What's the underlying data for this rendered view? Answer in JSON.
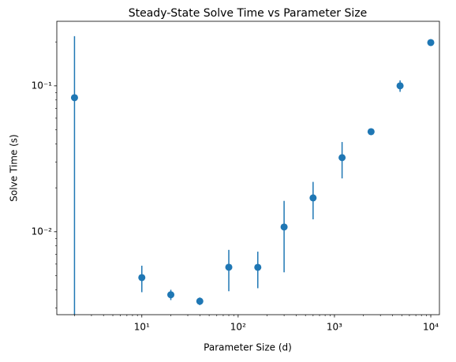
{
  "chart_data": {
    "type": "errorbar",
    "title": "Steady-State Solve Time vs Parameter Size",
    "xlabel": "Parameter Size (d)",
    "ylabel": "Solve Time (s)",
    "x": [
      2,
      10,
      20,
      40,
      80,
      160,
      300,
      600,
      1200,
      2400,
      4800,
      10000
    ],
    "values": [
      0.083,
      0.00485,
      0.0037,
      0.00334,
      0.00571,
      0.0057,
      0.01077,
      0.01706,
      0.0322,
      0.0485,
      0.1,
      0.198
    ],
    "errors": [
      0.136,
      0.001,
      0.0003,
      0.0002,
      0.0018,
      0.0016,
      0.0055,
      0.0049,
      0.009,
      0.0005,
      0.009,
      0.001
    ],
    "color": "#1f77b4",
    "xscale": "log",
    "yscale": "log",
    "xlim": [
      1.31,
      12300
    ],
    "ylim": [
      0.0027,
      0.277
    ],
    "xticks": [
      {
        "value": 10,
        "label": "10¹"
      },
      {
        "value": 100,
        "label": "10²"
      },
      {
        "value": 1000,
        "label": "10³"
      },
      {
        "value": 10000,
        "label": "10⁴"
      }
    ],
    "yticks": [
      {
        "value": 0.01,
        "label": "10⁻²"
      },
      {
        "value": 0.1,
        "label": "10⁻¹"
      }
    ],
    "x_minor_ticks": [
      2,
      3,
      4,
      5,
      6,
      7,
      8,
      9,
      20,
      30,
      40,
      50,
      60,
      70,
      80,
      90,
      200,
      300,
      400,
      500,
      600,
      700,
      800,
      900,
      2000,
      3000,
      4000,
      5000,
      6000,
      7000,
      8000,
      9000
    ],
    "y_minor_ticks": [
      0.003,
      0.004,
      0.005,
      0.006,
      0.007,
      0.008,
      0.009,
      0.02,
      0.03,
      0.04,
      0.05,
      0.06,
      0.07,
      0.08,
      0.09,
      0.2
    ]
  }
}
